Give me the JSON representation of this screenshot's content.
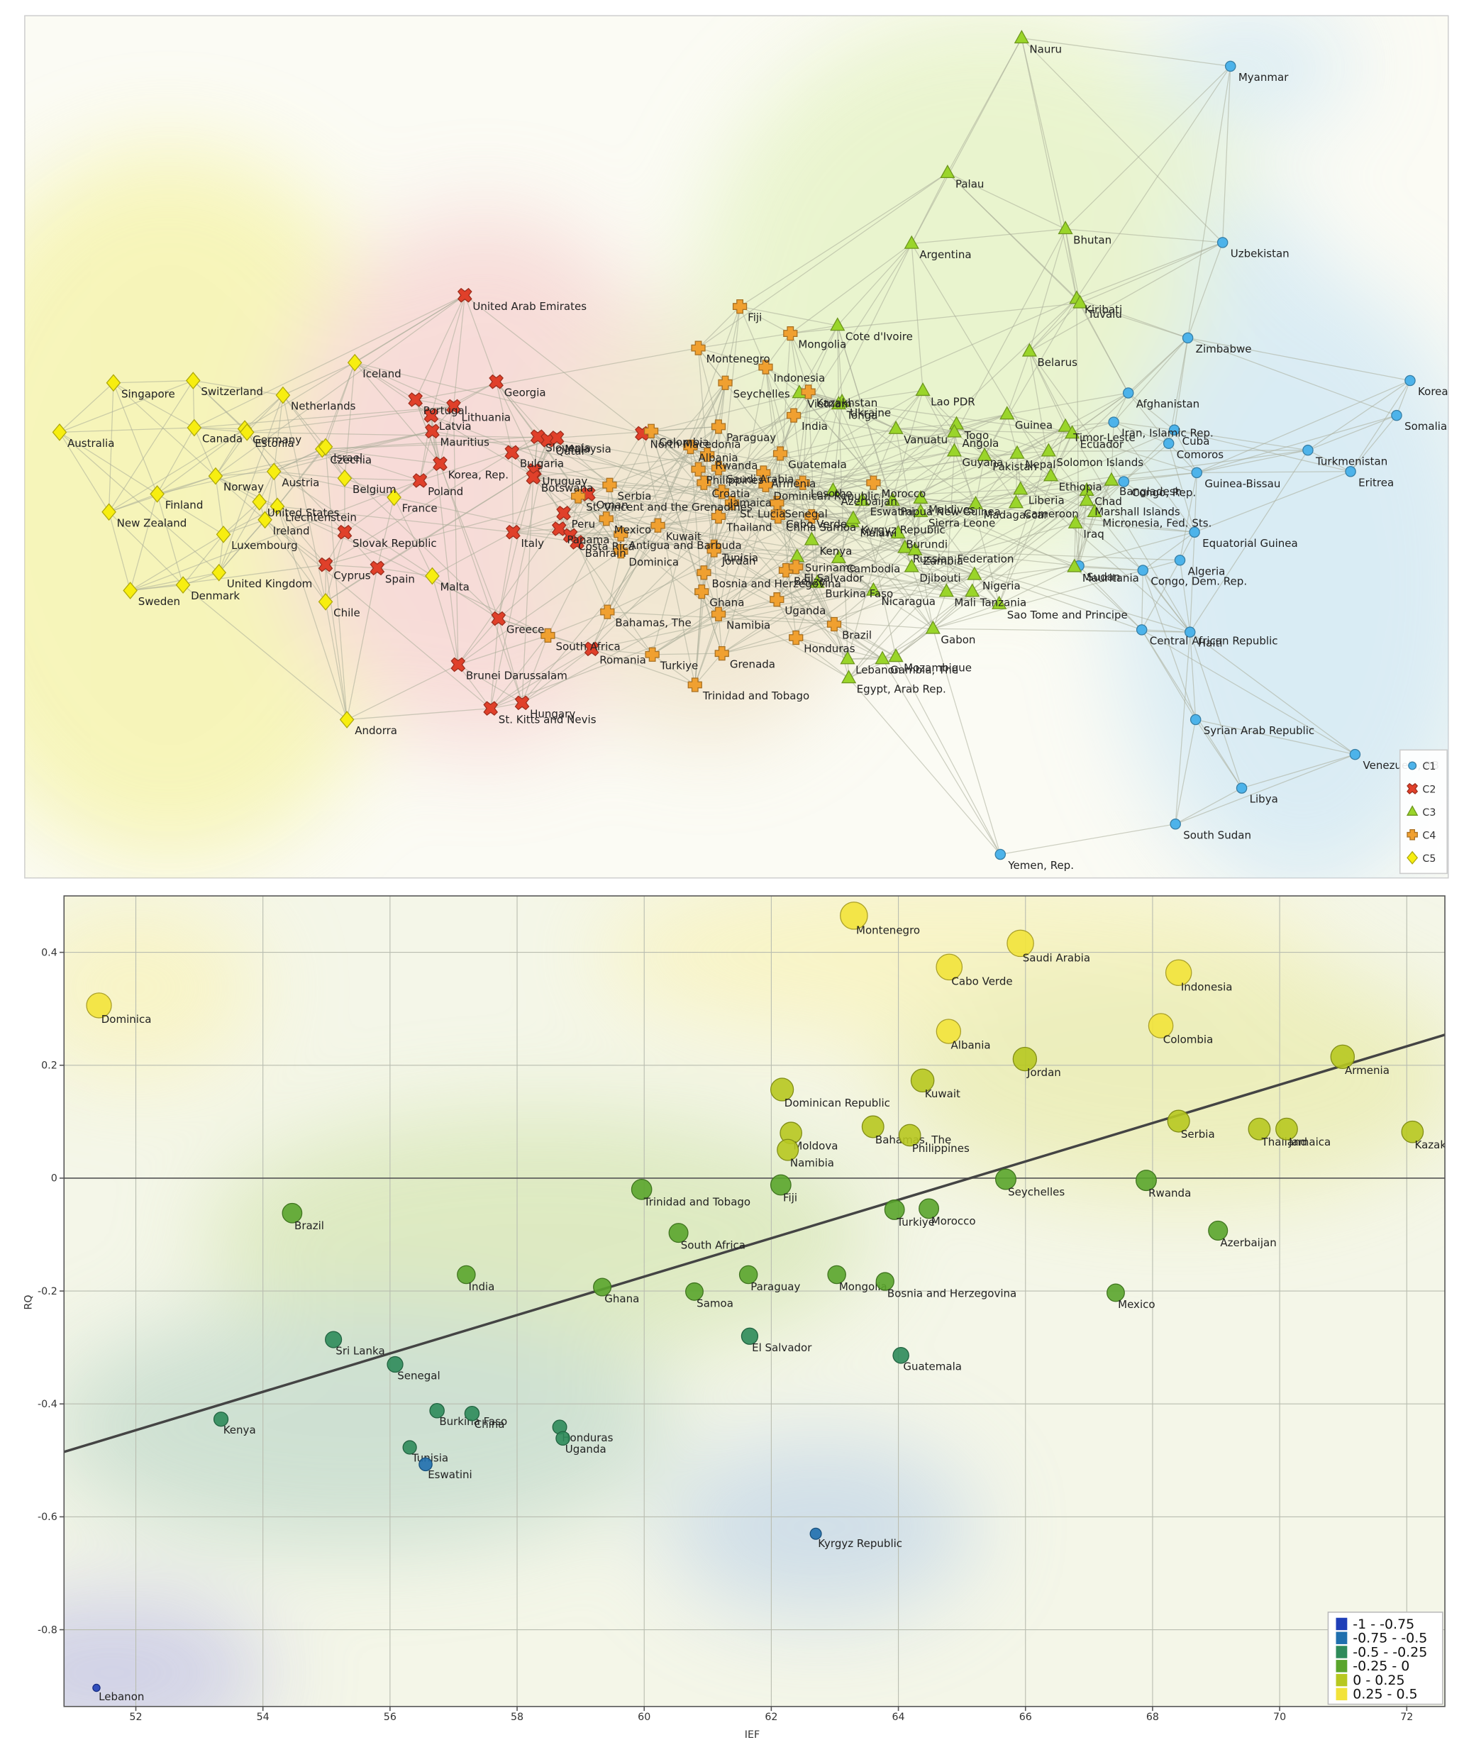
{
  "chart_data": [
    {
      "type": "network",
      "legend": {
        "position": "lower right"
      },
      "series": [
        {
          "name": "C1",
          "color": "#4db3ea",
          "marker": "circle",
          "nodes": [
            "Myanmar",
            "Uzbekistan",
            "Zimbabwe",
            "Afghanistan",
            "Iran, Islamic Rep.",
            "Cuba",
            "Comoros",
            "Guinea-Bissau",
            "Congo, Rep.",
            "Equatorial Guinea",
            "Algeria",
            "Sudan",
            "Congo, Dem. Rep.",
            "Central African Republic",
            "Haiti",
            "Syrian Arab Republic",
            "Libya",
            "South Sudan",
            "Yemen, Rep.",
            "Korea, Dem. People's Rep.",
            "Somalia",
            "Turkmenistan",
            "Eritrea",
            "Venezuela, RB"
          ]
        },
        {
          "name": "C2",
          "color": "#e0402a",
          "marker": "cross",
          "nodes": [
            "United Arab Emirates",
            "Georgia",
            "Portugal",
            "Latvia",
            "Lithuania",
            "Mauritius",
            "Korea, Rep.",
            "Poland",
            "Bulgaria",
            "Slovenia",
            "Qatar",
            "Malaysia",
            "Uruguay",
            "Botswana",
            "Italy",
            "Slovak Republic",
            "Cyprus",
            "Spain",
            "Greece",
            "Brunei Darussalam",
            "St. Kitts and Nevis",
            "Hungary",
            "Romania",
            "Oman",
            "Peru",
            "Panama",
            "Costa Rica",
            "Bahrain",
            "North Macedonia"
          ]
        },
        {
          "name": "C3",
          "color": "#9ad52a",
          "marker": "triangle",
          "nodes": [
            "Nauru",
            "Palau",
            "Argentina",
            "Bhutan",
            "Kiribati",
            "Tuvalu",
            "Cote d'Ivoire",
            "Belarus",
            "Vietnam",
            "Ukraine",
            "Lao PDR",
            "Tonga",
            "Vanuatu",
            "Togo",
            "Angola",
            "Guinea",
            "Timor-Leste",
            "Ecuador",
            "Guyana",
            "Pakistan",
            "Nepal",
            "Solomon Islands",
            "Azerbaijan",
            "Eswatini",
            "Papua New Guinea",
            "Maldives",
            "Madagascar",
            "Sierra Leone",
            "Liberia",
            "Cameroon",
            "Ethiopia",
            "Chad",
            "Bangladesh",
            "Marshall Islands",
            "Micronesia, Fed. Sts.",
            "Iraq",
            "Malawi",
            "Kyrgyz Republic",
            "Kenya",
            "Burundi",
            "Russian Federation",
            "Zambia",
            "Suriname",
            "Cambodia",
            "Djibouti",
            "Burkina Faso",
            "Nigeria",
            "Mali",
            "Tanzania",
            "Nicaragua",
            "Sao Tome and Principe",
            "Gabon",
            "Lebanon",
            "Gambia, The",
            "Mozambique",
            "Egypt, Arab Rep.",
            "Mauritania"
          ]
        },
        {
          "name": "C4",
          "color": "#f0a030",
          "marker": "plus",
          "nodes": [
            "Fiji",
            "Mongolia",
            "Montenegro",
            "Indonesia",
            "Seychelles",
            "Kazakhstan",
            "India",
            "Colombia",
            "Paraguay",
            "Albania",
            "Rwanda",
            "Saudi Arabia",
            "Philippines",
            "Armenia",
            "Guatemala",
            "Serbia",
            "Croatia",
            "Jamaica",
            "St. Lucia",
            "Dominican Republic",
            "Lesotho",
            "Cabo Verde",
            "Senegal",
            "China",
            "St. Vincent and the Grenadines",
            "Mexico",
            "Antigua and Barbuda",
            "Thailand",
            "Kuwait",
            "Dominica",
            "Tunisia",
            "Jordan",
            "Samoa",
            "Bosnia and Herzegovina",
            "Belize",
            "Ghana",
            "Namibia",
            "Uganda",
            "Bahamas, The",
            "South Africa",
            "Turkiye",
            "Grenada",
            "Honduras",
            "Brazil",
            "Trinidad and Tobago",
            "El Salvador",
            "Morocco"
          ]
        },
        {
          "name": "C5",
          "color": "#f7ee10",
          "marker": "diamond",
          "nodes": [
            "Australia",
            "Singapore",
            "Switzerland",
            "Netherlands",
            "Canada",
            "Germany",
            "Estonia",
            "Iceland",
            "Finland",
            "Norway",
            "Austria",
            "Czechia",
            "Israel",
            "Belgium",
            "Liechtenstein",
            "United States",
            "Ireland",
            "New Zealand",
            "Luxembourg",
            "France",
            "Sweden",
            "Denmark",
            "United Kingdom",
            "Malta",
            "Chile",
            "Andorra"
          ]
        }
      ]
    },
    {
      "type": "scatter",
      "x_label": "IEF",
      "y_label": "RQ",
      "xlim": [
        50.87,
        72.6
      ],
      "ylim": [
        -0.936,
        0.5
      ],
      "xticks": [
        52,
        54,
        56,
        58,
        60,
        62,
        64,
        66,
        68,
        70,
        72
      ],
      "yticks": [
        -0.8,
        -0.6,
        -0.4,
        -0.2,
        0,
        0.2,
        0.4
      ],
      "grid": true,
      "labels": [
        "Montenegro",
        "Saudi Arabia",
        "Cabo Verde",
        "Indonesia",
        "Dominica",
        "Albania",
        "Colombia",
        "Jordan",
        "Armenia",
        "Dominican Republic",
        "Kuwait",
        "Moldova",
        "Namibia",
        "Bahamas, The",
        "Philippines",
        "Serbia",
        "Thailand",
        "Jamaica",
        "Kazakhstan",
        "Seychelles",
        "Rwanda",
        "Trinidad and Tobago",
        "Fiji",
        "Turkiye",
        "Morocco",
        "Brazil",
        "South Africa",
        "Azerbaijan",
        "India",
        "Ghana",
        "Samoa",
        "Paraguay",
        "Mongolia",
        "Bosnia and Herzegovina",
        "Mexico",
        "El Salvador",
        "Guatemala",
        "Sri Lanka",
        "Senegal",
        "Kenya",
        "Burkina Faso",
        "China",
        "Tunisia",
        "Eswatini",
        "Honduras",
        "Uganda",
        "Kyrgyz Republic",
        "Lebanon"
      ],
      "x": [
        63.3,
        65.92,
        64.8,
        68.41,
        51.42,
        64.79,
        68.13,
        65.99,
        70.99,
        62.17,
        64.38,
        62.31,
        62.26,
        63.6,
        64.18,
        68.41,
        69.68,
        70.11,
        72.09,
        65.69,
        67.9,
        59.96,
        62.15,
        63.94,
        64.48,
        54.46,
        60.54,
        69.03,
        57.2,
        59.34,
        60.79,
        61.64,
        63.03,
        63.79,
        67.42,
        61.66,
        64.04,
        55.11,
        56.08,
        53.34,
        56.74,
        57.29,
        56.31,
        56.56,
        58.67,
        58.72,
        62.7,
        51.38
      ],
      "values": [
        0.465,
        0.416,
        0.374,
        0.364,
        0.306,
        0.26,
        0.27,
        0.211,
        0.215,
        0.157,
        0.173,
        0.08,
        0.05,
        0.091,
        0.076,
        0.101,
        0.087,
        0.087,
        0.082,
        -0.002,
        -0.004,
        -0.02,
        -0.012,
        -0.056,
        -0.054,
        -0.062,
        -0.097,
        -0.093,
        -0.171,
        -0.193,
        -0.201,
        -0.171,
        -0.171,
        -0.183,
        -0.203,
        -0.28,
        -0.314,
        -0.286,
        -0.33,
        -0.427,
        -0.412,
        -0.417,
        -0.477,
        -0.507,
        -0.441,
        -0.461,
        -0.63,
        -0.903
      ],
      "trendline": {
        "x": [
          50.87,
          72.6
        ],
        "y": [
          -0.485,
          0.254
        ]
      },
      "legend": {
        "position": "lower right",
        "items": [
          {
            "label": "-1 - -0.75",
            "min": -1,
            "max": -0.75,
            "color": "#1f3fb8"
          },
          {
            "label": "-0.75 - -0.5",
            "min": -0.75,
            "max": -0.5,
            "color": "#1f6fae"
          },
          {
            "label": "-0.5 - -0.25",
            "min": -0.5,
            "max": -0.25,
            "color": "#2e8b5a"
          },
          {
            "label": "-0.25 - 0",
            "min": -0.25,
            "max": 0,
            "color": "#5aa52c"
          },
          {
            "label": "0 - 0.25",
            "min": 0,
            "max": 0.25,
            "color": "#b7c820"
          },
          {
            "label": "0.25 - 0.5",
            "min": 0.25,
            "max": 0.5,
            "color": "#f2e33a"
          }
        ]
      }
    }
  ]
}
